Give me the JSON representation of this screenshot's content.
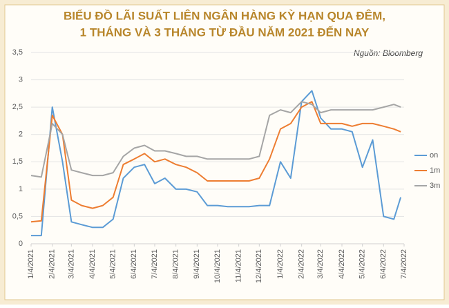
{
  "chart_data": {
    "type": "line",
    "title": "BIỂU ĐỒ LÃI SUẤT LIÊN NGÂN HÀNG KỲ HẠN QUA ĐÊM,",
    "subtitle": "1 THÁNG VÀ 3 THÁNG TỪ ĐẦU NĂM 2021 ĐẾN NAY",
    "source": "Nguồn: Bloomberg",
    "x": [
      "1/4/2021",
      "1/19/2021",
      "2/4/2021",
      "2/19/2021",
      "3/4/2021",
      "3/19/2021",
      "4/4/2021",
      "4/19/2021",
      "5/4/2021",
      "5/19/2021",
      "6/4/2021",
      "6/19/2021",
      "7/4/2021",
      "7/19/2021",
      "8/4/2021",
      "8/19/2021",
      "9/4/2021",
      "9/19/2021",
      "10/4/2021",
      "10/19/2021",
      "11/4/2021",
      "11/19/2021",
      "12/4/2021",
      "12/19/2021",
      "1/4/2022",
      "1/19/2022",
      "2/4/2022",
      "2/19/2022",
      "3/4/2022",
      "3/19/2022",
      "4/4/2022",
      "4/19/2022",
      "5/4/2022",
      "5/19/2022",
      "6/4/2022",
      "6/19/2022",
      "6/29/2022"
    ],
    "series": [
      {
        "name": "on",
        "color": "#5b9bd5",
        "values": [
          0.15,
          0.15,
          2.5,
          1.5,
          0.4,
          0.35,
          0.3,
          0.3,
          0.45,
          1.2,
          1.4,
          1.45,
          1.1,
          1.2,
          1.0,
          1.0,
          0.95,
          0.7,
          0.7,
          0.68,
          0.68,
          0.68,
          0.7,
          0.7,
          1.5,
          1.2,
          2.6,
          2.8,
          2.3,
          2.1,
          2.1,
          2.05,
          1.4,
          1.9,
          0.5,
          0.45,
          0.85
        ]
      },
      {
        "name": "1m",
        "color": "#ed7d31",
        "values": [
          0.4,
          0.42,
          2.35,
          2.0,
          0.8,
          0.7,
          0.65,
          0.7,
          0.85,
          1.45,
          1.55,
          1.65,
          1.5,
          1.55,
          1.45,
          1.4,
          1.3,
          1.15,
          1.15,
          1.15,
          1.15,
          1.15,
          1.2,
          1.55,
          2.1,
          2.2,
          2.5,
          2.6,
          2.2,
          2.2,
          2.2,
          2.15,
          2.2,
          2.2,
          2.15,
          2.1,
          2.05
        ]
      },
      {
        "name": "3m",
        "color": "#a5a5a5",
        "values": [
          1.25,
          1.22,
          2.2,
          2.0,
          1.35,
          1.3,
          1.25,
          1.25,
          1.3,
          1.6,
          1.75,
          1.8,
          1.7,
          1.7,
          1.65,
          1.6,
          1.6,
          1.55,
          1.55,
          1.55,
          1.55,
          1.55,
          1.6,
          2.35,
          2.45,
          2.4,
          2.6,
          2.55,
          2.4,
          2.45,
          2.45,
          2.45,
          2.45,
          2.45,
          2.5,
          2.55,
          2.5
        ]
      }
    ],
    "xlim": [
      "1/4/2021",
      "7/4/2022"
    ],
    "xticks": [
      "1/4/2021",
      "2/4/2021",
      "3/4/2021",
      "4/4/2021",
      "5/4/2021",
      "6/4/2021",
      "7/4/2021",
      "8/4/2021",
      "9/4/2021",
      "10/4/2021",
      "11/4/2021",
      "12/4/2021",
      "1/4/2022",
      "2/4/2022",
      "3/4/2022",
      "4/4/2022",
      "5/4/2022",
      "6/4/2022",
      "7/4/2022"
    ],
    "ylim": [
      0,
      3.5
    ],
    "yticks": [
      0,
      {
        "value": 0.5,
        "label": "0,5"
      },
      1,
      {
        "value": 1.5,
        "label": "1,5"
      },
      2,
      {
        "value": 2.5,
        "label": "2,5"
      },
      3,
      {
        "value": 3.5,
        "label": "3,5"
      }
    ],
    "grid": true,
    "legend": "right"
  }
}
